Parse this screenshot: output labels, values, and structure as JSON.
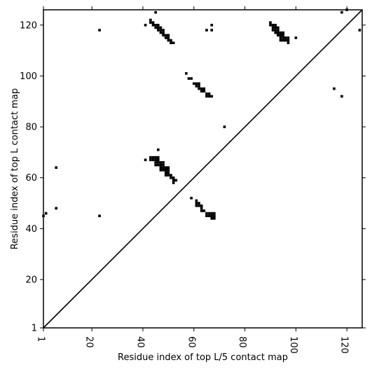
{
  "chart_data": {
    "type": "heatmap",
    "xlabel": "Residue index of top L/5 contact map",
    "ylabel": "Residue index of top L contact map",
    "x_range": [
      1,
      126
    ],
    "y_range": [
      1,
      126
    ],
    "x_ticks": [
      1,
      20,
      40,
      60,
      80,
      100,
      120
    ],
    "y_ticks": [
      1,
      20,
      40,
      60,
      80,
      100,
      120
    ],
    "x_tick_labels": [
      "1",
      "20",
      "40",
      "60",
      "80",
      "100",
      "120"
    ],
    "y_tick_labels": [
      "1",
      "20",
      "40",
      "60",
      "80",
      "100",
      "120"
    ],
    "diagonal": true,
    "cell_color": "#000000",
    "background_color": "#ffffff",
    "contacts": [
      [
        45,
        125
      ],
      [
        118,
        125
      ],
      [
        120,
        126
      ],
      [
        125,
        118
      ],
      [
        23,
        118
      ],
      [
        41,
        120
      ],
      [
        43,
        122
      ],
      [
        43,
        121
      ],
      [
        44,
        121
      ],
      [
        44,
        120
      ],
      [
        45,
        120
      ],
      [
        46,
        120
      ],
      [
        45,
        119
      ],
      [
        46,
        119
      ],
      [
        47,
        119
      ],
      [
        46,
        118
      ],
      [
        47,
        118
      ],
      [
        48,
        118
      ],
      [
        47,
        117
      ],
      [
        48,
        117
      ],
      [
        48,
        116
      ],
      [
        49,
        116
      ],
      [
        50,
        116
      ],
      [
        49,
        115
      ],
      [
        50,
        115
      ],
      [
        50,
        114
      ],
      [
        51,
        114
      ],
      [
        51,
        113
      ],
      [
        52,
        113
      ],
      [
        65,
        118
      ],
      [
        67,
        118
      ],
      [
        67,
        120
      ],
      [
        90,
        121
      ],
      [
        90,
        120
      ],
      [
        91,
        120
      ],
      [
        92,
        120
      ],
      [
        91,
        119
      ],
      [
        92,
        119
      ],
      [
        93,
        119
      ],
      [
        91,
        118
      ],
      [
        92,
        118
      ],
      [
        93,
        118
      ],
      [
        92,
        117
      ],
      [
        93,
        117
      ],
      [
        94,
        117
      ],
      [
        95,
        117
      ],
      [
        93,
        116
      ],
      [
        94,
        116
      ],
      [
        95,
        116
      ],
      [
        94,
        115
      ],
      [
        95,
        115
      ],
      [
        96,
        115
      ],
      [
        97,
        115
      ],
      [
        94,
        114
      ],
      [
        95,
        114
      ],
      [
        96,
        114
      ],
      [
        97,
        114
      ],
      [
        97,
        113
      ],
      [
        100,
        115
      ],
      [
        57,
        101
      ],
      [
        58,
        99
      ],
      [
        59,
        99
      ],
      [
        60,
        97
      ],
      [
        61,
        97
      ],
      [
        62,
        97
      ],
      [
        61,
        96
      ],
      [
        62,
        96
      ],
      [
        62,
        95
      ],
      [
        63,
        95
      ],
      [
        64,
        95
      ],
      [
        63,
        94
      ],
      [
        64,
        94
      ],
      [
        65,
        93
      ],
      [
        66,
        93
      ],
      [
        65,
        92
      ],
      [
        66,
        92
      ],
      [
        67,
        92
      ],
      [
        115,
        95
      ],
      [
        118,
        92
      ],
      [
        72,
        80
      ],
      [
        46,
        71
      ],
      [
        41,
        67
      ],
      [
        43,
        68
      ],
      [
        44,
        68
      ],
      [
        45,
        68
      ],
      [
        46,
        68
      ],
      [
        43,
        67
      ],
      [
        44,
        67
      ],
      [
        45,
        67
      ],
      [
        46,
        67
      ],
      [
        45,
        66
      ],
      [
        46,
        66
      ],
      [
        47,
        66
      ],
      [
        48,
        66
      ],
      [
        45,
        65
      ],
      [
        46,
        65
      ],
      [
        47,
        65
      ],
      [
        48,
        65
      ],
      [
        47,
        64
      ],
      [
        48,
        64
      ],
      [
        49,
        64
      ],
      [
        50,
        64
      ],
      [
        47,
        63
      ],
      [
        48,
        63
      ],
      [
        49,
        63
      ],
      [
        50,
        63
      ],
      [
        49,
        62
      ],
      [
        50,
        62
      ],
      [
        49,
        61
      ],
      [
        50,
        61
      ],
      [
        51,
        61
      ],
      [
        51,
        60
      ],
      [
        52,
        60
      ],
      [
        52,
        59
      ],
      [
        53,
        59
      ],
      [
        52,
        58
      ],
      [
        6,
        64
      ],
      [
        59,
        52
      ],
      [
        61,
        51
      ],
      [
        61,
        50
      ],
      [
        62,
        50
      ],
      [
        61,
        49
      ],
      [
        62,
        49
      ],
      [
        63,
        49
      ],
      [
        63,
        48
      ],
      [
        63,
        47
      ],
      [
        64,
        47
      ],
      [
        65,
        46
      ],
      [
        65,
        45
      ],
      [
        66,
        46
      ],
      [
        66,
        45
      ],
      [
        67,
        46
      ],
      [
        67,
        45
      ],
      [
        67,
        44
      ],
      [
        68,
        46
      ],
      [
        68,
        45
      ],
      [
        68,
        44
      ],
      [
        6,
        48
      ],
      [
        2,
        46
      ],
      [
        1,
        45
      ],
      [
        23,
        45
      ]
    ]
  }
}
